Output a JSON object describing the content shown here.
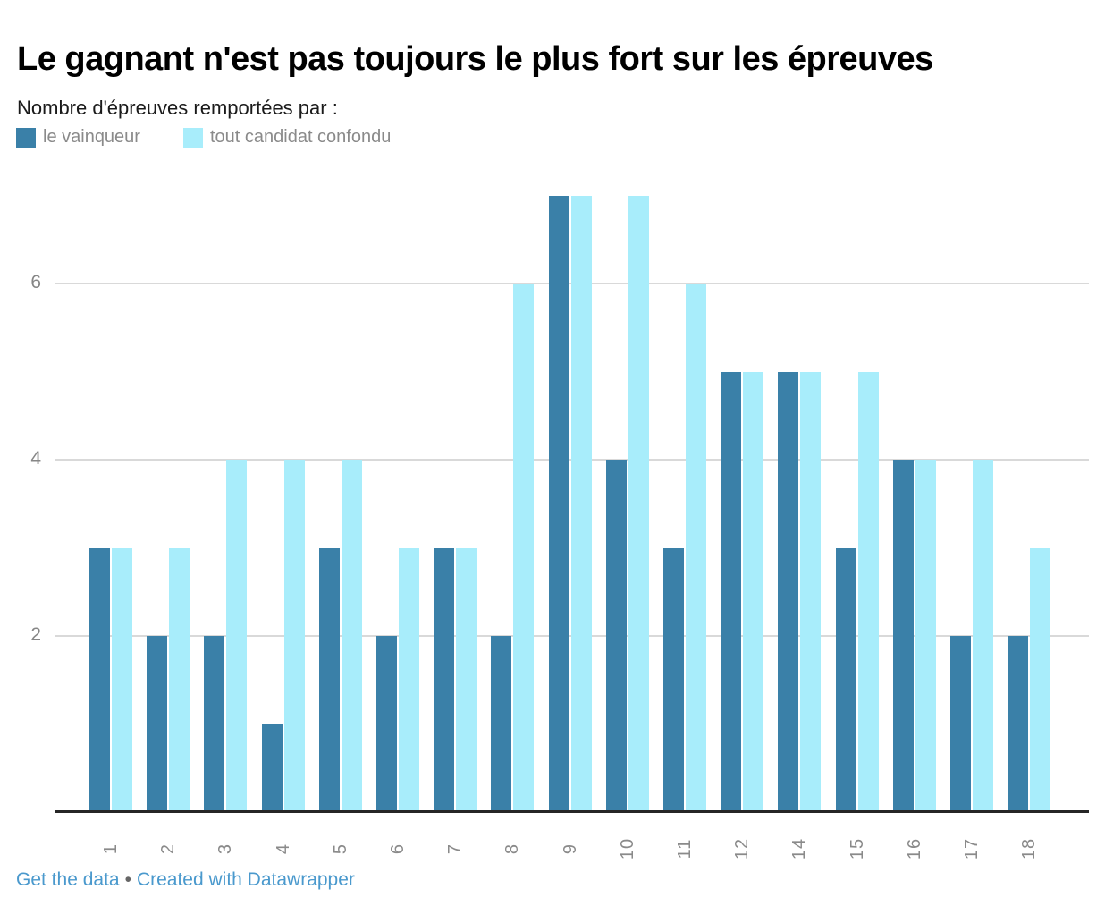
{
  "header": {
    "title": "Le gagnant n'est pas toujours le plus fort sur les épreuves",
    "subtitle": "Nombre d'épreuves remportées par :"
  },
  "legend": {
    "items": [
      {
        "label": "le vainqueur",
        "color": "#3a80a8"
      },
      {
        "label": "tout candidat confondu",
        "color": "#a8edfb"
      }
    ]
  },
  "chart_data": {
    "type": "bar",
    "title": "Le gagnant n'est pas toujours le plus fort sur les épreuves",
    "subtitle": "Nombre d'épreuves remportées par :",
    "categories": [
      "1",
      "2",
      "3",
      "4",
      "5",
      "6",
      "7",
      "8",
      "9",
      "10",
      "11",
      "12",
      "14",
      "15",
      "16",
      "17",
      "18"
    ],
    "series": [
      {
        "name": "le vainqueur",
        "color": "#3a80a8",
        "values": [
          3,
          2,
          2,
          1,
          3,
          2,
          3,
          2,
          7,
          4,
          3,
          5,
          5,
          3,
          4,
          2,
          2
        ]
      },
      {
        "name": "tout candidat confondu",
        "color": "#a8edfb",
        "values": [
          3,
          3,
          4,
          4,
          4,
          3,
          3,
          6,
          7,
          7,
          6,
          5,
          5,
          5,
          4,
          4,
          3
        ]
      }
    ],
    "xlabel": "",
    "ylabel": "",
    "ylim": [
      0,
      7
    ],
    "yticks": [
      2,
      4,
      6
    ],
    "grid": "horizontal",
    "legend_position": "top"
  },
  "colors": {
    "gridline": "#d9d9d9",
    "axis_line": "#262626",
    "axis_text": "#8a8a8a",
    "link": "#4a99cd"
  },
  "footer": {
    "get_data_label": "Get the data",
    "separator": "•",
    "credit_label": "Created with Datawrapper"
  }
}
